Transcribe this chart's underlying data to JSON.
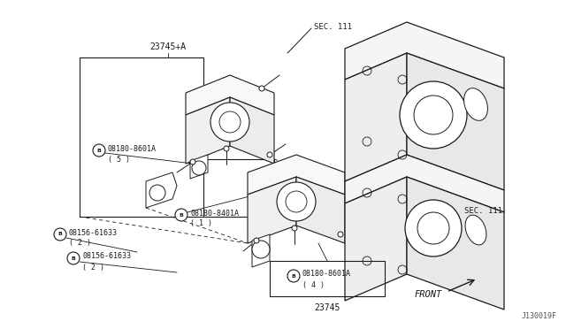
{
  "bg_color": "#ffffff",
  "line_color": "#1a1a1a",
  "fig_width": 6.4,
  "fig_height": 3.72,
  "dpi": 100,
  "diagram_code": "J130019F",
  "label_23745A": "23745+A",
  "label_23745": "23745",
  "label_sec111_top": "SEC. 111",
  "label_sec111_right": "SEC. 111",
  "label_front": "FRONT",
  "part1_num": "08180-8601A",
  "part1_qty": "( 5 )",
  "part2_num": "08180-8401A",
  "part2_qty": "( 1 )",
  "part3_num": "08156-61633",
  "part3_qty": "( 2 )",
  "part4_num": "08156-61633",
  "part4_qty": "( 2 )",
  "part5_num": "08180-8601A",
  "part5_qty": "( 4 )"
}
